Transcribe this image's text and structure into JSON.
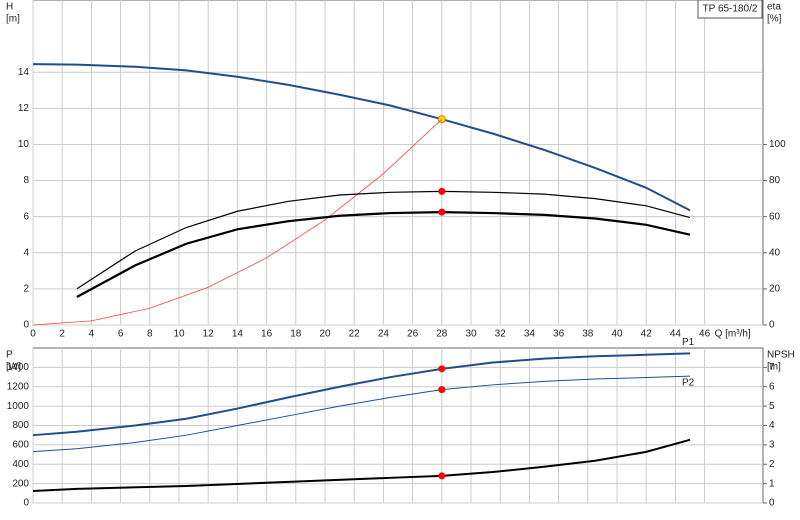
{
  "chart_data": [
    {
      "type": "line",
      "title": "TP 65-180/2",
      "ylabel": "H",
      "yunit": "[m]",
      "y2label": "eta",
      "y2unit": "[%]",
      "xlabel": "Q [m³/h]",
      "xlim": [
        0,
        50
      ],
      "xticks": [
        0,
        2,
        4,
        6,
        8,
        10,
        12,
        14,
        16,
        18,
        20,
        22,
        24,
        26,
        28,
        30,
        32,
        34,
        36,
        38,
        40,
        42,
        44,
        46
      ],
      "ylim": [
        0,
        18
      ],
      "yticks": [
        0,
        2,
        4,
        6,
        8,
        10,
        12,
        14
      ],
      "y2lim": [
        0,
        180
      ],
      "y2ticks": [
        0,
        20,
        40,
        60,
        80,
        100
      ],
      "grid": true,
      "highlight_x": 28,
      "series": [
        {
          "color": "#1f4e8c",
          "width": 2,
          "marker": "#ffd700",
          "x": [
            0,
            3,
            7,
            10.5,
            14,
            17.5,
            21,
            24.5,
            28,
            31.5,
            35,
            38.5,
            42,
            45
          ],
          "values": [
            14.45,
            14.42,
            14.3,
            14.1,
            13.75,
            13.3,
            12.75,
            12.15,
            11.4,
            10.6,
            9.7,
            8.7,
            7.6,
            6.35
          ]
        },
        {
          "color": "#ff4040",
          "width": 0.8,
          "x": [
            0,
            4,
            8,
            12,
            16,
            20,
            24,
            28
          ],
          "values": [
            0,
            0.23,
            0.93,
            2.09,
            3.72,
            5.82,
            8.38,
            11.4
          ]
        },
        {
          "color": "#000000",
          "width": 1.2,
          "axis": "y2",
          "marker": "#ff0000",
          "x": [
            3,
            7,
            10.5,
            14,
            17.5,
            21,
            24.5,
            28,
            31.5,
            35,
            38.5,
            42,
            45
          ],
          "values": [
            20,
            41,
            54,
            63,
            68.5,
            72,
            73.5,
            74,
            73.5,
            72.5,
            70,
            66,
            59.5
          ]
        },
        {
          "color": "#000000",
          "width": 2.2,
          "axis": "y2",
          "marker": "#ff0000",
          "x": [
            3,
            7,
            10.5,
            14,
            17.5,
            21,
            24.5,
            28,
            31.5,
            35,
            38.5,
            42,
            45
          ],
          "values": [
            15.5,
            33,
            45,
            53,
            57.5,
            60.5,
            62,
            62.5,
            62,
            61,
            59,
            55.5,
            50
          ]
        }
      ]
    },
    {
      "type": "line",
      "ylabel": "P",
      "yunit": "[W]",
      "y2label": "NPSH",
      "y2unit": "[m]",
      "xlim": [
        0,
        50
      ],
      "ylim": [
        0,
        1600
      ],
      "yticks": [
        0,
        200,
        400,
        600,
        800,
        1000,
        1200,
        1400
      ],
      "y2lim": [
        0,
        8
      ],
      "y2ticks": [
        0,
        1,
        2,
        3,
        4,
        5,
        6,
        7
      ],
      "grid": true,
      "highlight_x": 28,
      "series": [
        {
          "name": "P1",
          "color": "#1f4e8c",
          "width": 2,
          "marker": "#ff0000",
          "x": [
            0,
            3,
            7,
            10.5,
            14,
            17.5,
            21,
            24.5,
            28,
            31.5,
            35,
            38.5,
            42,
            45
          ],
          "values": [
            700,
            735,
            800,
            870,
            975,
            1090,
            1200,
            1300,
            1385,
            1450,
            1490,
            1515,
            1530,
            1545
          ]
        },
        {
          "name": "P2",
          "color": "#1f4e8c",
          "width": 1,
          "marker": "#ff0000",
          "x": [
            0,
            3,
            7,
            10.5,
            14,
            17.5,
            21,
            24.5,
            28,
            31.5,
            35,
            38.5,
            42,
            45
          ],
          "values": [
            530,
            560,
            625,
            700,
            800,
            900,
            1000,
            1090,
            1170,
            1220,
            1255,
            1280,
            1295,
            1310
          ]
        },
        {
          "color": "#000000",
          "width": 2,
          "axis": "y2",
          "marker": "#ff0000",
          "x": [
            0,
            3,
            10.5,
            17.5,
            24.5,
            28,
            31.5,
            35,
            38.5,
            42,
            45
          ],
          "values": [
            0.62,
            0.73,
            0.88,
            1.09,
            1.3,
            1.4,
            1.6,
            1.87,
            2.18,
            2.64,
            3.26
          ]
        }
      ]
    }
  ]
}
